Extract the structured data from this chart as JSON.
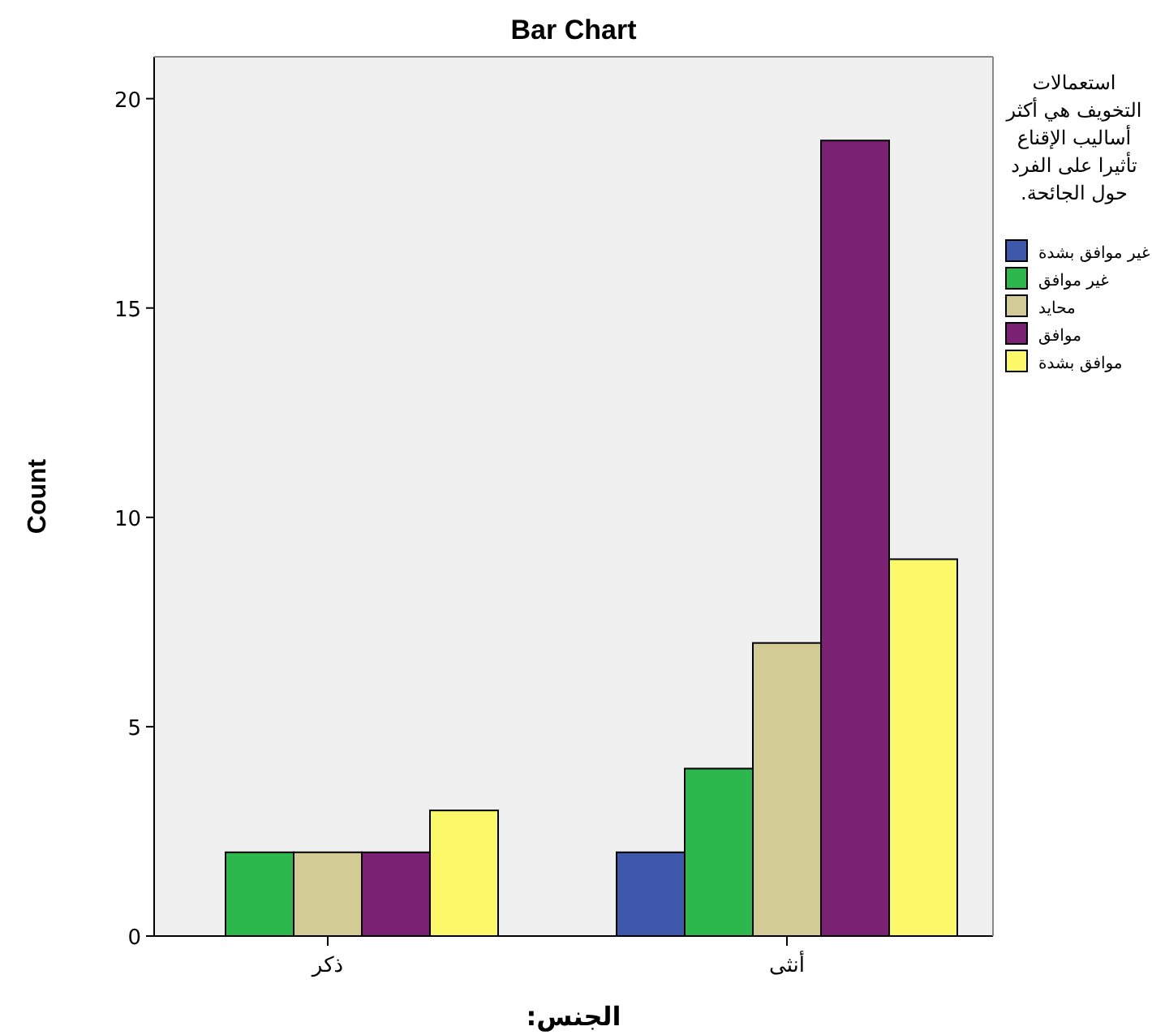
{
  "chart_data": {
    "type": "bar",
    "title": "Bar Chart",
    "xlabel": "الجنس:",
    "ylabel": "Count",
    "legend_title": "استعمالات التخويف هي أكثر أساليب الإقناع تأثيرا على الفرد حول الجائحة.",
    "categories": [
      "ذكر",
      "أنثى"
    ],
    "series": [
      {
        "name": "غير موافق بشدة",
        "color": "#3e58ac",
        "values": [
          null,
          2
        ]
      },
      {
        "name": "غير موافق",
        "color": "#2db84d",
        "values": [
          2,
          4
        ]
      },
      {
        "name": "محايد",
        "color": "#d2cb95",
        "values": [
          2,
          7
        ]
      },
      {
        "name": "موافق",
        "color": "#7b2174",
        "values": [
          2,
          19
        ]
      },
      {
        "name": "موافق بشدة",
        "color": "#fbf869",
        "values": [
          3,
          9
        ]
      }
    ],
    "ylim": [
      0,
      21
    ],
    "yticks": [
      0,
      5,
      10,
      15,
      20
    ],
    "grid": false,
    "legend": "right"
  }
}
